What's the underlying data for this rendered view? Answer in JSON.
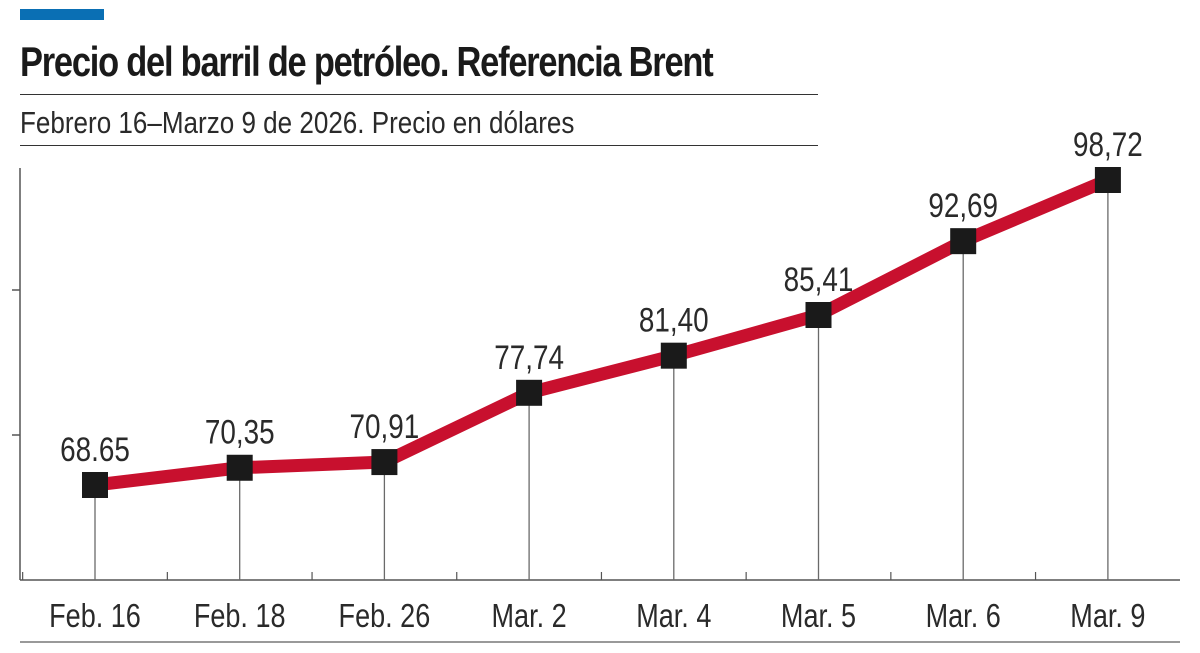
{
  "header": {
    "title": "Precio del barril de petróleo. Referencia Brent",
    "subtitle": "Febrero 16–Marzo 9 de 2026. Precio en dólares"
  },
  "colors": {
    "accent": "#0a6fb4",
    "line": "#c8102e",
    "marker": "#1a1a1a",
    "axis": "#555555"
  },
  "chart_data": {
    "type": "line",
    "title": "Precio del barril de petróleo. Referencia Brent",
    "subtitle": "Febrero 16–Marzo 9 de 2026. Precio en dólares",
    "categories": [
      "Feb. 16",
      "Feb. 18",
      "Feb. 26",
      "Mar. 2",
      "Mar. 4",
      "Mar. 5",
      "Mar. 6",
      "Mar. 9"
    ],
    "values": [
      68.65,
      70.35,
      70.91,
      77.74,
      81.4,
      85.41,
      92.69,
      98.72
    ],
    "data_labels": [
      "68.65",
      "70,35",
      "70,91",
      "77,74",
      "81,40",
      "85,41",
      "92,69",
      "98,72"
    ],
    "ylim": [
      40,
      100
    ],
    "xlabel": "",
    "ylabel": "",
    "grid": false,
    "legend": "none",
    "drop_lines": true
  }
}
